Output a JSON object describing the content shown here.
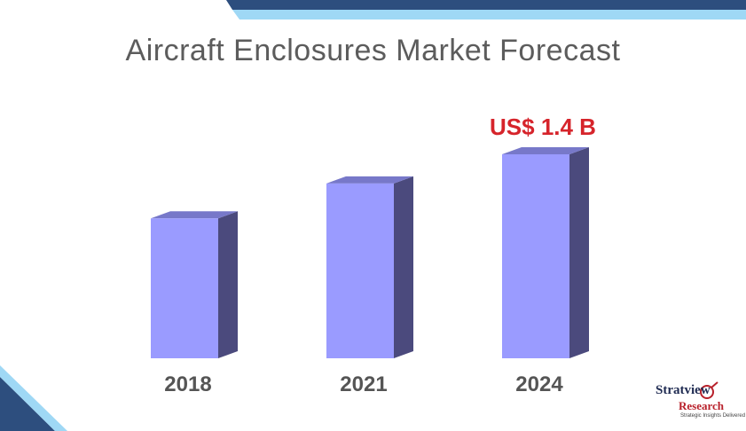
{
  "chart_data": {
    "type": "bar",
    "title": "Aircraft Enclosures Market Forecast",
    "categories": [
      "2018",
      "2021",
      "2024"
    ],
    "values": [
      0.96,
      1.2,
      1.4
    ],
    "value_unit": "US$ B",
    "annotations": [
      {
        "category": "2024",
        "text": "US$ 1.4 B"
      }
    ],
    "xlabel": "",
    "ylabel": "",
    "grid": false,
    "colors": {
      "bar_front": "#9a9bff",
      "bar_side": "#4b4a7d",
      "bar_top": "#7778c9",
      "annotation": "#d6242b"
    }
  },
  "logo": {
    "name": "Stratview",
    "sub": "Research",
    "tagline": "Strategic Insights Delivered"
  },
  "decor": {
    "accent_dark": "#2d4e7e",
    "accent_light": "#9fd8f5"
  }
}
